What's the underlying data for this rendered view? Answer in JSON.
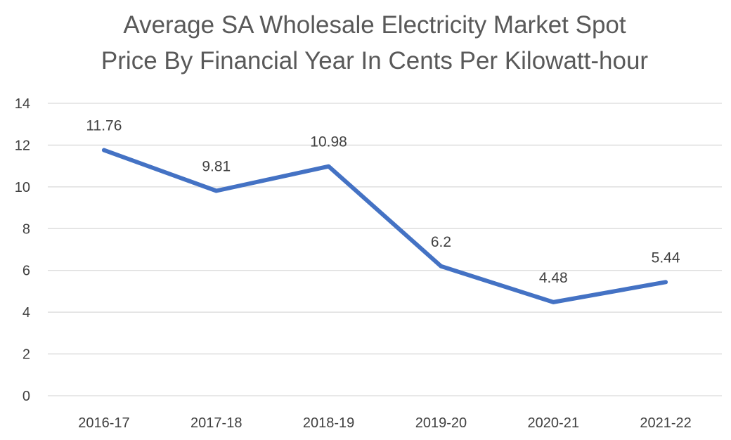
{
  "chart_data": {
    "type": "line",
    "title": [
      "Average SA Wholesale Electricity Market Spot",
      "Price By Financial Year In Cents Per Kilowatt-hour"
    ],
    "categories": [
      "2016-17",
      "2017-18",
      "2018-19",
      "2019-20",
      "2020-21",
      "2021-22"
    ],
    "series": [
      {
        "values": [
          11.76,
          9.81,
          10.98,
          6.2,
          4.48,
          5.44
        ],
        "labels": [
          "11.76",
          "9.81",
          "10.98",
          "6.2",
          "4.48",
          "5.44"
        ],
        "color": "#4472c4"
      }
    ],
    "yticks": [
      "0",
      "2",
      "4",
      "6",
      "8",
      "10",
      "12",
      "14"
    ],
    "ylim": [
      0,
      14
    ],
    "xlabel": "",
    "ylabel": "",
    "grid": true,
    "legend": "none"
  }
}
